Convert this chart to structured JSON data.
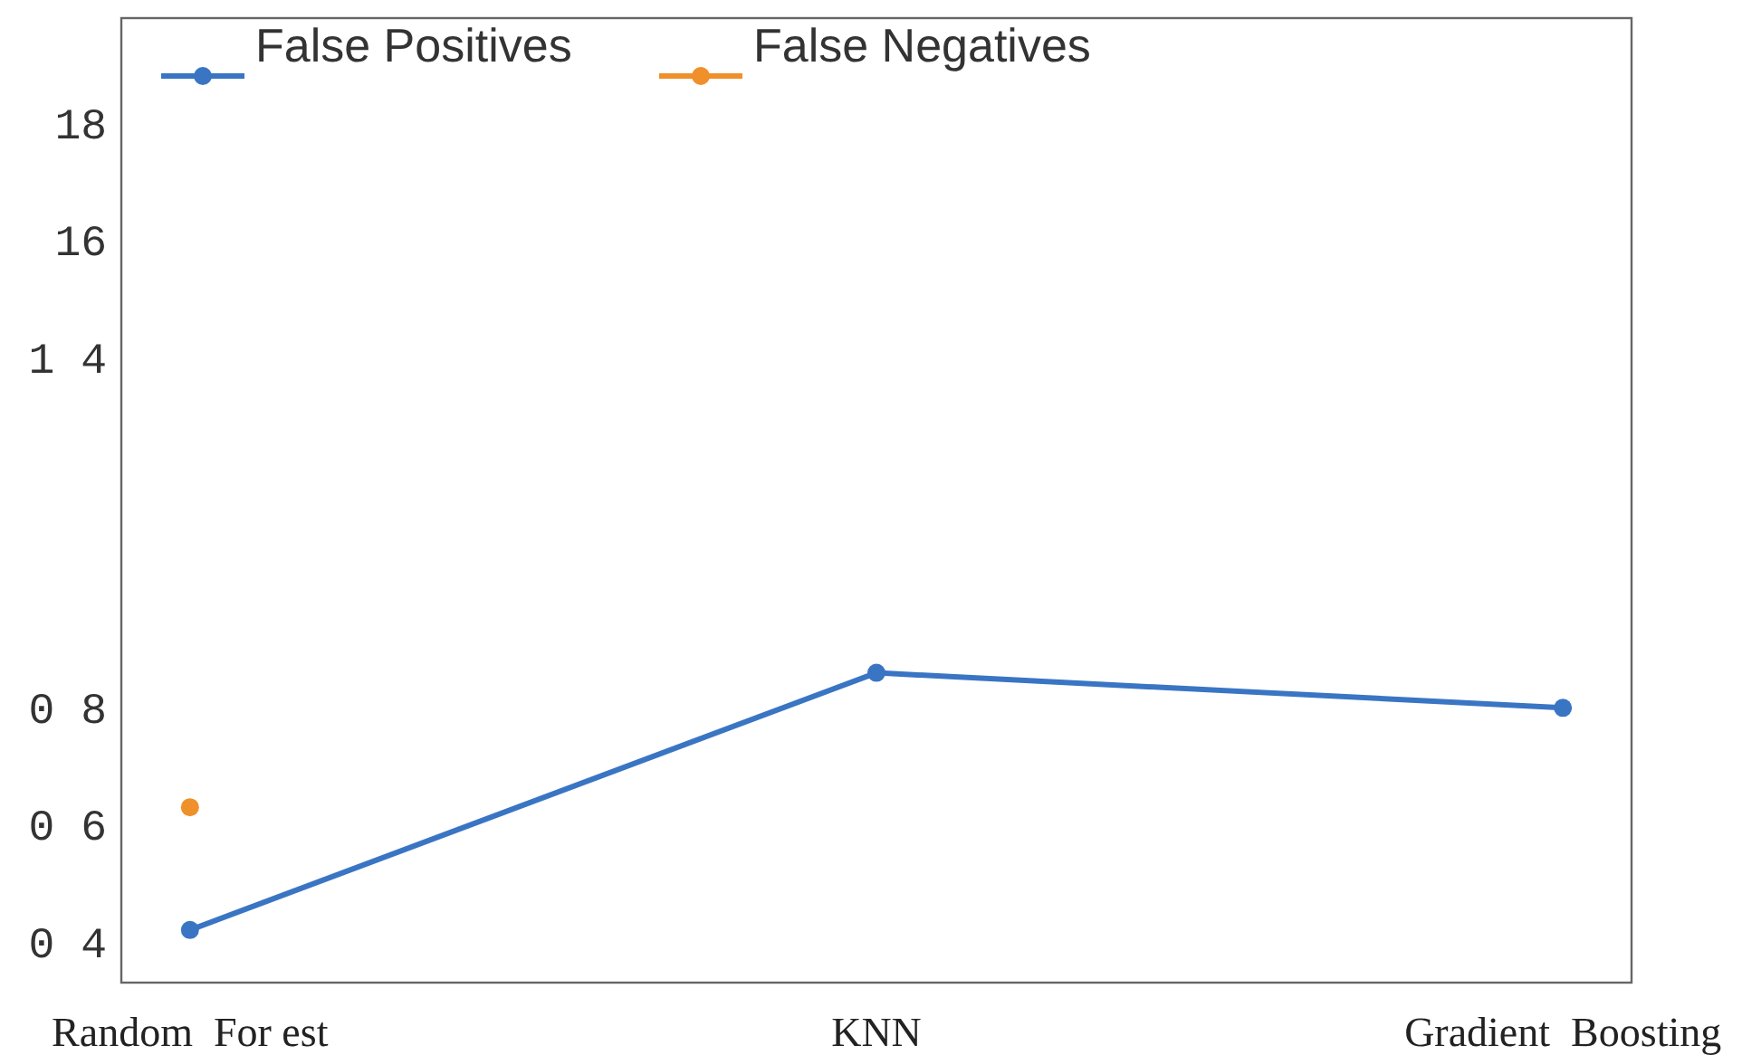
{
  "chart_data": {
    "type": "line",
    "categories": [
      "Random  For est",
      "KNN",
      "Gradient  Boosting"
    ],
    "series": [
      {
        "name": "False Positives",
        "color": "#3a75c4",
        "values": [
          4.2,
          8.6,
          8.0
        ]
      },
      {
        "name": "False Negatives",
        "color": "#f0902a",
        "values": [
          6.3,
          null,
          null
        ]
      }
    ],
    "ylim": [
      3.3,
      19.8
    ],
    "yticks": [
      {
        "value": 4,
        "label": "0 4"
      },
      {
        "value": 6,
        "label": "0 6"
      },
      {
        "value": 8,
        "label": "0 8"
      },
      {
        "value": 14,
        "label": "1 4"
      },
      16,
      18
    ],
    "marker": "circle",
    "grid": false,
    "legend": "top left"
  }
}
